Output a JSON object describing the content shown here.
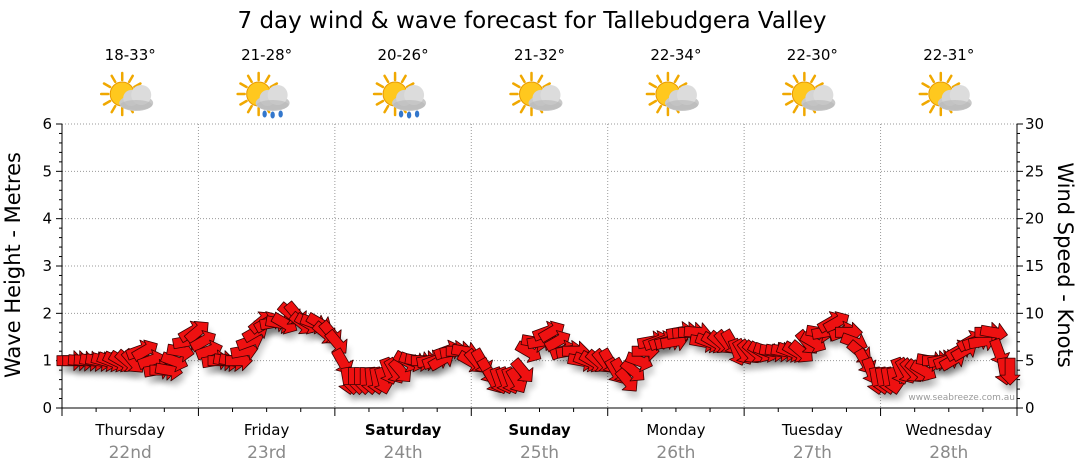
{
  "colors": {
    "arrow_fill": "#ee1111",
    "arrow_stroke": "#3a0000",
    "grid": "#9a9a9a",
    "date": "#8a8a8a"
  },
  "credit": "www.seabreeze.com.au",
  "chart_data": {
    "type": "line",
    "title": "7 day wind & wave forecast for Tallebudgera Valley",
    "ylabel_left": "Wave Height - Metres",
    "ylabel_right": "Wind Speed - Knots",
    "yticks_left": [
      "0",
      "1",
      "2",
      "3",
      "4",
      "5",
      "6"
    ],
    "yticks_right": [
      "0",
      "5",
      "10",
      "15",
      "20",
      "25",
      "30"
    ],
    "ylim_left": [
      0,
      6
    ],
    "ylim_right": [
      0,
      30
    ],
    "days": [
      {
        "name": "Thursday",
        "date": "22nd",
        "temp": "18-33°",
        "icon": "sun-cloud-icon",
        "bold": false
      },
      {
        "name": "Friday",
        "date": "23rd",
        "temp": "21-28°",
        "icon": "sun-cloud-rain-icon",
        "bold": false
      },
      {
        "name": "Saturday",
        "date": "24th",
        "temp": "20-26°",
        "icon": "sun-cloud-rain-icon",
        "bold": true
      },
      {
        "name": "Sunday",
        "date": "25th",
        "temp": "21-32°",
        "icon": "sun-cloud-icon",
        "bold": true
      },
      {
        "name": "Monday",
        "date": "26th",
        "temp": "22-34°",
        "icon": "sun-cloud-icon",
        "bold": false
      },
      {
        "name": "Tuesday",
        "date": "27th",
        "temp": "22-30°",
        "icon": "sun-cloud-icon",
        "bold": false
      },
      {
        "name": "Wednesday",
        "date": "28th",
        "temp": "22-31°",
        "icon": "sun-cloud-icon",
        "bold": false
      }
    ],
    "wind_series": {
      "name": "Wind speed (knots) and direction, hourly",
      "unit": "knots",
      "speeds": [
        5,
        5,
        5,
        5,
        5,
        5,
        5,
        5,
        5,
        5,
        5,
        5,
        6,
        6,
        5,
        4,
        4,
        4,
        5,
        6,
        7,
        8,
        8,
        7,
        6,
        5,
        5,
        5,
        5,
        5,
        6,
        7,
        8,
        9,
        9,
        9,
        9,
        9,
        10,
        10,
        9,
        9,
        9,
        9,
        8,
        8,
        7,
        5,
        3,
        3,
        3,
        3,
        3,
        3,
        3,
        4,
        4,
        4,
        5,
        5,
        5,
        5,
        5,
        5,
        5,
        6,
        6,
        6,
        6,
        5,
        5,
        5,
        4,
        3,
        3,
        3,
        3,
        3,
        4,
        6,
        7,
        7,
        8,
        8,
        7,
        6,
        6,
        6,
        5,
        5,
        5,
        5,
        5,
        5,
        4,
        4,
        3,
        4,
        5,
        6,
        7,
        7,
        7,
        7,
        7,
        8,
        8,
        8,
        8,
        7,
        7,
        7,
        7,
        7,
        7,
        6,
        6,
        6,
        6,
        6,
        6,
        6,
        6,
        6,
        6,
        6,
        6,
        7,
        7,
        8,
        8,
        9,
        9,
        8,
        8,
        7,
        6,
        5,
        4,
        3,
        3,
        3,
        3,
        4,
        4,
        4,
        4,
        4,
        5,
        5,
        5,
        5,
        5,
        6,
        6,
        7,
        7,
        7,
        8,
        8,
        6,
        4,
        4
      ],
      "directions_deg": [
        90,
        90,
        95,
        95,
        100,
        100,
        105,
        110,
        115,
        120,
        130,
        140,
        70,
        60,
        70,
        80,
        90,
        100,
        110,
        100,
        80,
        60,
        50,
        60,
        70,
        80,
        90,
        100,
        100,
        90,
        80,
        70,
        60,
        50,
        60,
        80,
        100,
        120,
        130,
        140,
        130,
        120,
        110,
        120,
        130,
        140,
        140,
        150,
        170,
        180,
        180,
        180,
        175,
        170,
        165,
        160,
        150,
        140,
        120,
        110,
        100,
        90,
        80,
        70,
        60,
        70,
        80,
        90,
        100,
        120,
        140,
        150,
        150,
        150,
        160,
        160,
        160,
        150,
        140,
        120,
        100,
        80,
        70,
        60,
        60,
        70,
        80,
        90,
        100,
        110,
        120,
        130,
        140,
        150,
        150,
        150,
        140,
        130,
        110,
        90,
        80,
        70,
        70,
        75,
        80,
        80,
        85,
        90,
        95,
        100,
        110,
        120,
        130,
        140,
        150,
        160,
        150,
        140,
        130,
        120,
        110,
        100,
        100,
        100,
        110,
        120,
        130,
        140,
        120,
        100,
        80,
        60,
        60,
        70,
        90,
        110,
        130,
        150,
        160,
        170,
        170,
        170,
        170,
        160,
        150,
        140,
        130,
        120,
        100,
        90,
        80,
        70,
        60,
        60,
        60,
        60,
        70,
        80,
        90,
        100,
        160,
        170,
        180
      ]
    }
  }
}
